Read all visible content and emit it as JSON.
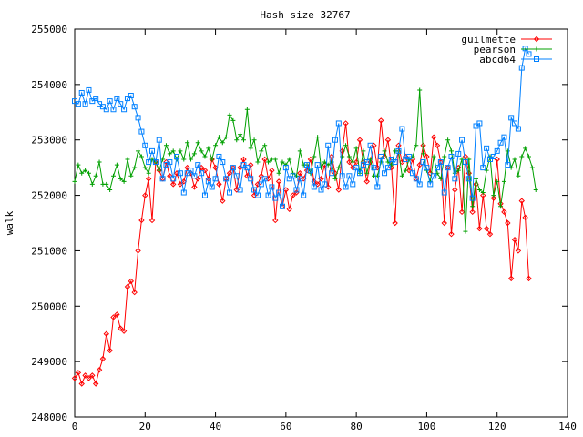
{
  "chart_data": {
    "type": "line",
    "title": "Hash size 32767",
    "xlabel": "",
    "ylabel": "walk",
    "xlim": [
      0,
      140
    ],
    "ylim": [
      248000,
      255000
    ],
    "x_ticks": [
      0,
      20,
      40,
      60,
      80,
      100,
      120,
      140
    ],
    "y_ticks": [
      248000,
      249000,
      250000,
      251000,
      252000,
      253000,
      254000,
      255000
    ],
    "x_tick_labels": [
      "0",
      "20",
      "40",
      "60",
      "80",
      "100",
      "120",
      "140"
    ],
    "y_tick_labels": [
      "248000",
      "249000",
      "250000",
      "251000",
      "252000",
      "253000",
      "254000",
      "255000"
    ],
    "grid": false,
    "legend_position": "top-right",
    "series": [
      {
        "name": "guilmette",
        "color": "#ff0000",
        "marker": "diamond",
        "x_start": 0,
        "values": [
          248700,
          248800,
          248600,
          248750,
          248700,
          248750,
          248600,
          248850,
          249050,
          249500,
          249200,
          249800,
          249850,
          249600,
          249550,
          250350,
          250450,
          250250,
          251000,
          251550,
          252000,
          252300,
          251550,
          252600,
          252450,
          252300,
          252600,
          252350,
          252200,
          252400,
          252200,
          252250,
          252500,
          252400,
          252150,
          252300,
          252500,
          252450,
          252300,
          252650,
          252500,
          252200,
          251900,
          252300,
          252400,
          252500,
          252100,
          252500,
          252650,
          252350,
          252550,
          252000,
          252200,
          252350,
          252650,
          252300,
          252450,
          251550,
          252250,
          251800,
          252100,
          251750,
          252000,
          252050,
          252400,
          252300,
          252450,
          252650,
          252250,
          252200,
          252300,
          252550,
          252150,
          252700,
          252400,
          252100,
          252800,
          253300,
          252600,
          252500,
          252600,
          253000,
          252600,
          252250,
          252600,
          252900,
          252500,
          253350,
          252700,
          253000,
          252500,
          251500,
          252900,
          252600,
          252700,
          252450,
          252650,
          252300,
          252550,
          252900,
          252700,
          252400,
          253050,
          252900,
          252600,
          251500,
          252500,
          251300,
          252100,
          252500,
          251700,
          252700,
          252400,
          251700,
          252200,
          251400,
          252000,
          251400,
          251300,
          251950,
          252650,
          251850,
          251700,
          251500,
          250500,
          251200,
          251000,
          251900,
          251600,
          250500
        ]
      },
      {
        "name": "pearson",
        "color": "#00a000",
        "marker": "plus",
        "x_start": 0,
        "values": [
          252250,
          252550,
          252400,
          252450,
          252400,
          252200,
          252350,
          252600,
          252200,
          252200,
          252100,
          252350,
          252550,
          252300,
          252250,
          252650,
          252350,
          252500,
          252800,
          252700,
          252500,
          252400,
          252650,
          252600,
          252450,
          252650,
          252900,
          252750,
          252800,
          252650,
          252800,
          252650,
          252950,
          252650,
          252750,
          252950,
          252800,
          252700,
          252850,
          252650,
          252900,
          253050,
          252950,
          253050,
          253450,
          253350,
          253000,
          253100,
          253000,
          253550,
          252850,
          253000,
          252600,
          252800,
          252900,
          252600,
          252650,
          252650,
          252400,
          252600,
          252550,
          252650,
          252400,
          252350,
          252800,
          252550,
          252550,
          252400,
          252700,
          253050,
          252500,
          252600,
          252550,
          252600,
          252300,
          252500,
          252700,
          252900,
          252700,
          252600,
          252850,
          252400,
          252800,
          252400,
          252650,
          252350,
          252350,
          252600,
          252800,
          252600,
          252550,
          252800,
          252800,
          252350,
          252450,
          252650,
          252700,
          252900,
          253900,
          252750,
          252450,
          252250,
          252700,
          252400,
          252300,
          252700,
          253000,
          252800,
          252400,
          252450,
          252650,
          251350,
          252650,
          251800,
          252300,
          252100,
          252050,
          252450,
          252700,
          252000,
          252250,
          251800,
          252250,
          252800,
          252500,
          252650,
          252350,
          252700,
          252850,
          252700,
          252500,
          252100
        ]
      },
      {
        "name": "abcd64",
        "color": "#0080ff",
        "marker": "square",
        "x_start": 0,
        "values": [
          253700,
          253650,
          253850,
          253650,
          253900,
          253700,
          253750,
          253650,
          253600,
          253550,
          253700,
          253550,
          253750,
          253650,
          253550,
          253750,
          253800,
          253600,
          253400,
          253150,
          252900,
          252600,
          252800,
          252600,
          253000,
          252300,
          252550,
          252600,
          252300,
          252700,
          252400,
          252050,
          252400,
          252450,
          252350,
          252550,
          252400,
          252000,
          252250,
          252150,
          252300,
          252700,
          252600,
          252300,
          252050,
          252500,
          252350,
          252100,
          252550,
          252500,
          252300,
          252100,
          252000,
          252200,
          252300,
          252000,
          252150,
          251950,
          252050,
          251800,
          252500,
          252300,
          252350,
          252100,
          252300,
          252000,
          252550,
          252450,
          252150,
          252550,
          252100,
          252200,
          252900,
          252400,
          253000,
          253300,
          252350,
          252150,
          252350,
          252200,
          252500,
          252400,
          252550,
          252600,
          252900,
          252500,
          252150,
          252700,
          252400,
          252500,
          252650,
          252600,
          252800,
          253200,
          252650,
          252700,
          252400,
          252300,
          252200,
          252600,
          252500,
          252200,
          252350,
          252500,
          252600,
          252050,
          252500,
          252700,
          252300,
          252750,
          253000,
          252600,
          252300,
          251950,
          253250,
          253300,
          252500,
          252850,
          252650,
          252700,
          252800,
          252950,
          253050,
          252550,
          253400,
          253300,
          253200,
          254300,
          254650,
          254550
        ]
      }
    ]
  }
}
